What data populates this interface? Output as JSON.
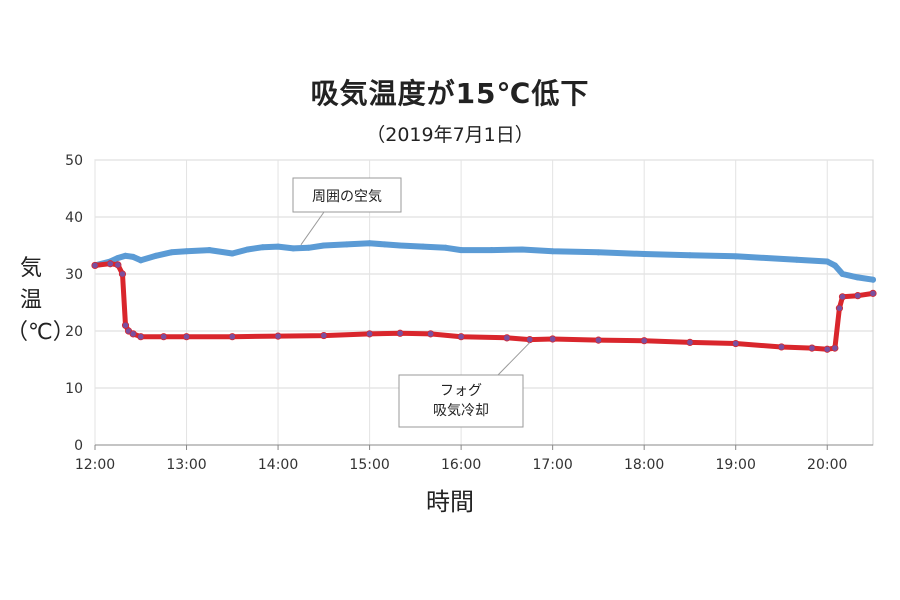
{
  "chart_data": {
    "type": "line",
    "title": "吸気温度が15℃低下",
    "subtitle": "（2019年7月1日）",
    "ylabel_lines": [
      "気",
      "温",
      "（℃）"
    ],
    "xlabel": "時間",
    "ylim": [
      0,
      50
    ],
    "xlim": [
      "12:00",
      "20:30"
    ],
    "yticks": [
      "0",
      "10",
      "20",
      "30",
      "40",
      "50"
    ],
    "xticks": [
      "12:00",
      "13:00",
      "14:00",
      "15:00",
      "16:00",
      "17:00",
      "18:00",
      "19:00",
      "20:00"
    ],
    "grid": true,
    "colors": {
      "ambient": "#5b9bd5",
      "fog": "#d9262c",
      "fog_marker": "#7b4f9e"
    },
    "series": [
      {
        "key": "ambient",
        "x": [
          "12:00",
          "12:10",
          "12:15",
          "12:20",
          "12:25",
          "12:30",
          "12:40",
          "12:50",
          "13:00",
          "13:15",
          "13:30",
          "13:40",
          "13:50",
          "14:00",
          "14:10",
          "14:20",
          "14:30",
          "14:45",
          "15:00",
          "15:10",
          "15:20",
          "15:35",
          "15:50",
          "16:00",
          "16:20",
          "16:40",
          "17:00",
          "17:30",
          "18:00",
          "18:30",
          "19:00",
          "19:20",
          "19:40",
          "20:00",
          "20:05",
          "20:10",
          "20:20",
          "20:30"
        ],
        "values": [
          31.5,
          32.2,
          32.8,
          33.2,
          33.0,
          32.4,
          33.2,
          33.8,
          34.0,
          34.2,
          33.6,
          34.3,
          34.7,
          34.8,
          34.5,
          34.6,
          35.0,
          35.2,
          35.4,
          35.2,
          35.0,
          34.8,
          34.6,
          34.2,
          34.2,
          34.3,
          34.0,
          33.8,
          33.5,
          33.3,
          33.1,
          32.8,
          32.5,
          32.2,
          31.5,
          30.0,
          29.4,
          29.0
        ]
      },
      {
        "key": "fog",
        "x": [
          "12:00",
          "12:10",
          "12:15",
          "12:18",
          "12:20",
          "12:22",
          "12:25",
          "12:30",
          "12:45",
          "13:00",
          "13:30",
          "14:00",
          "14:30",
          "15:00",
          "15:20",
          "15:40",
          "16:00",
          "16:30",
          "16:45",
          "17:00",
          "17:30",
          "18:00",
          "18:30",
          "19:00",
          "19:30",
          "19:50",
          "20:00",
          "20:05",
          "20:08",
          "20:10",
          "20:20",
          "20:30"
        ],
        "values": [
          31.5,
          31.8,
          31.6,
          30.0,
          21.0,
          20.0,
          19.5,
          19.0,
          19.0,
          19.0,
          19.0,
          19.1,
          19.2,
          19.5,
          19.6,
          19.5,
          19.0,
          18.8,
          18.5,
          18.6,
          18.4,
          18.3,
          18.0,
          17.8,
          17.2,
          17.0,
          16.8,
          17.0,
          24.0,
          26.0,
          26.2,
          26.6
        ]
      }
    ],
    "annotations": [
      {
        "key": "ambient",
        "lines": [
          "周囲の空気"
        ]
      },
      {
        "key": "fog",
        "lines": [
          "フォグ",
          "吸気冷却"
        ]
      }
    ]
  }
}
